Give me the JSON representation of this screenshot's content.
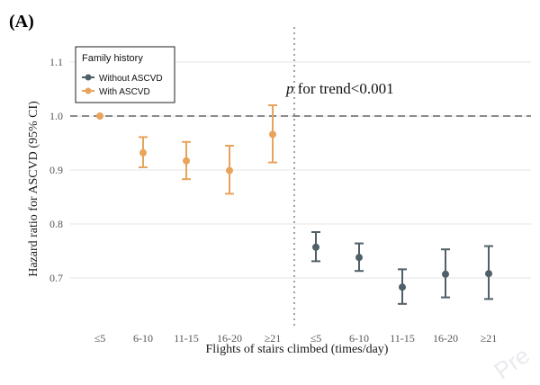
{
  "panel_label": "(A)",
  "annotation": {
    "italic": "p",
    "text": " for trend<0.001"
  },
  "watermark": "Pre",
  "legend": {
    "title": "Family history",
    "items": [
      {
        "label": "Without ASCVD",
        "color": "#4f6068"
      },
      {
        "label": "With ASCVD",
        "color": "#e8a35c"
      }
    ]
  },
  "chart_data": {
    "type": "scatter",
    "title": "",
    "xlabel": "Flights of stairs climbed (times/day)",
    "ylabel": "Hazard ratio for ASCVD (95% CI)",
    "ylim": [
      0.61,
      1.165
    ],
    "yticks": [
      0.7,
      0.8,
      0.9,
      1.0,
      1.1
    ],
    "yticklabels": [
      "0.7",
      "0.8",
      "0.9",
      "1.0",
      "1.1"
    ],
    "categories": [
      "≤5",
      "6-10",
      "11-15",
      "16-20",
      "≥21",
      "≤5",
      "6-10",
      "11-15",
      "16-20",
      "≥21"
    ],
    "reference_line": 1.0,
    "divider_after_index": 4,
    "grid": true,
    "legend_position": "top-left",
    "series": [
      {
        "name": "With ASCVD",
        "color": "#e8a35c",
        "x_index": [
          0,
          1,
          2,
          3,
          4
        ],
        "values": [
          1.0,
          0.932,
          0.917,
          0.899,
          0.966
        ],
        "ci_lower": [
          1.0,
          0.905,
          0.883,
          0.856,
          0.914
        ],
        "ci_upper": [
          1.0,
          0.961,
          0.952,
          0.945,
          1.02
        ]
      },
      {
        "name": "Without ASCVD",
        "color": "#4f6068",
        "x_index": [
          5,
          6,
          7,
          8,
          9
        ],
        "values": [
          0.757,
          0.738,
          0.683,
          0.707,
          0.708
        ],
        "ci_lower": [
          0.731,
          0.713,
          0.652,
          0.664,
          0.661
        ],
        "ci_upper": [
          0.785,
          0.764,
          0.716,
          0.753,
          0.759
        ]
      }
    ]
  }
}
